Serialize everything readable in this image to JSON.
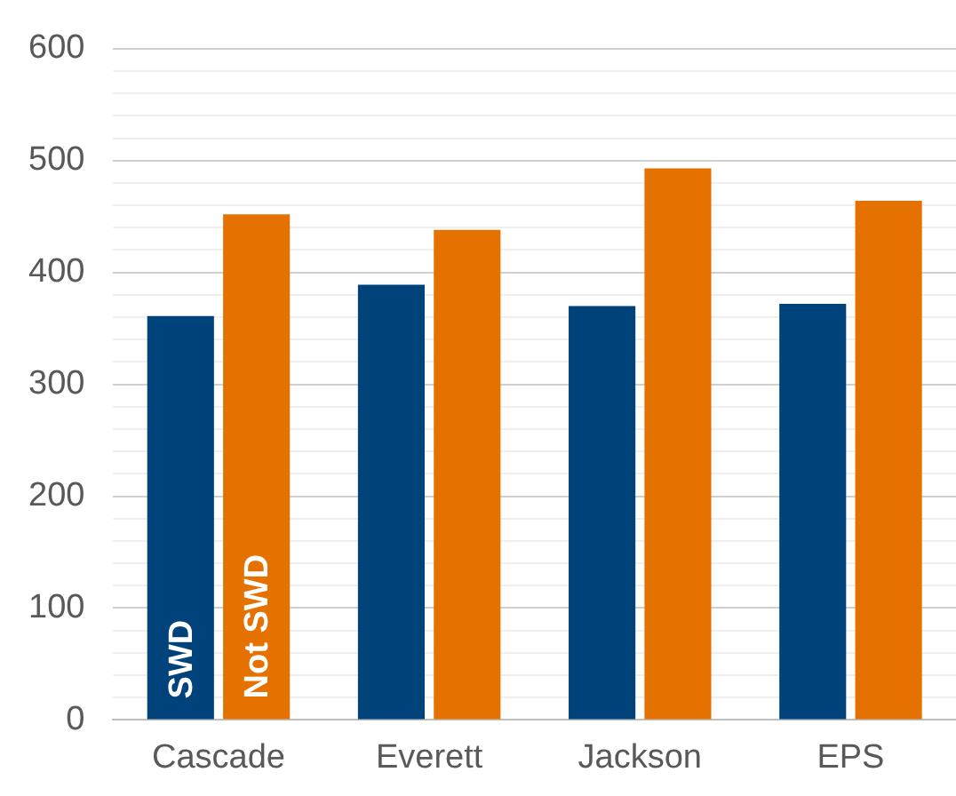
{
  "chart_data": {
    "type": "bar",
    "categories": [
      "Cascade",
      "Everett",
      "Jackson",
      "EPS"
    ],
    "series": [
      {
        "name": "SWD",
        "color": "#00437a",
        "values": [
          361,
          389,
          370,
          372
        ]
      },
      {
        "name": "Not SWD",
        "color": "#e57200",
        "values": [
          452,
          438,
          493,
          464
        ]
      }
    ],
    "ylim": [
      0,
      600
    ],
    "yticks": [
      0,
      {
        "value": 20,
        "label": null
      },
      {
        "value": 40,
        "label": null
      },
      {
        "value": 60,
        "label": null
      },
      {
        "value": 80,
        "label": null
      },
      100,
      {
        "value": 120,
        "label": null
      },
      {
        "value": 140,
        "label": null
      },
      {
        "value": 160,
        "label": null
      },
      {
        "value": 180,
        "label": null
      },
      200,
      {
        "value": 220,
        "label": null
      },
      {
        "value": 240,
        "label": null
      },
      {
        "value": 260,
        "label": null
      },
      {
        "value": 280,
        "label": null
      },
      300,
      {
        "value": 320,
        "label": null
      },
      {
        "value": 340,
        "label": null
      },
      {
        "value": 360,
        "label": null
      },
      {
        "value": 380,
        "label": null
      },
      400,
      {
        "value": 420,
        "label": null
      },
      {
        "value": 440,
        "label": null
      },
      {
        "value": 460,
        "label": null
      },
      {
        "value": 480,
        "label": null
      },
      500,
      {
        "value": 520,
        "label": null
      },
      {
        "value": 540,
        "label": null
      },
      {
        "value": 560,
        "label": null
      },
      {
        "value": 580,
        "label": null
      },
      600
    ],
    "grid": "y",
    "legend": false
  }
}
